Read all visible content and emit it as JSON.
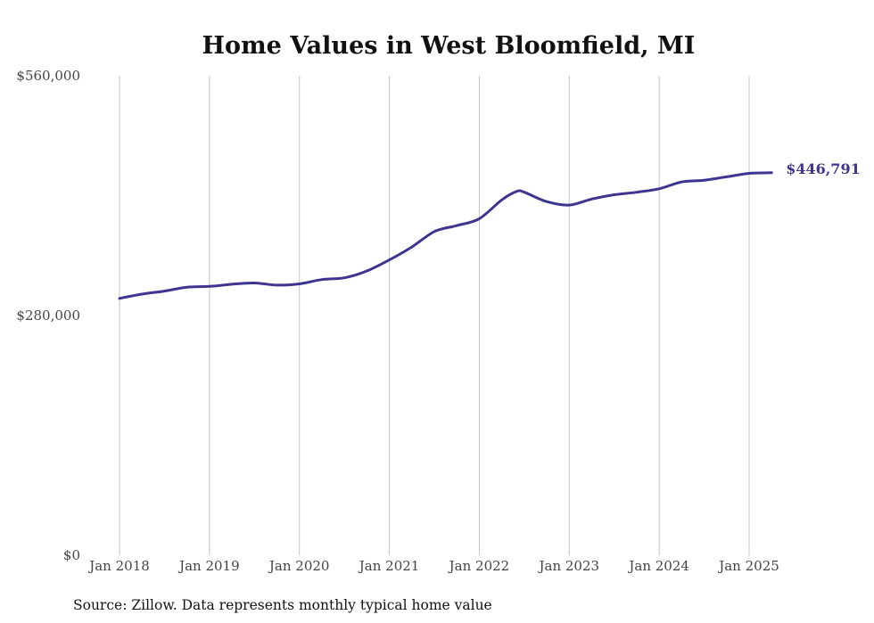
{
  "chart_data": {
    "type": "line",
    "title": "Home Values in West Bloomfield, MI",
    "xlabel": "",
    "ylabel": "",
    "x_tick_labels": [
      "Jan 2018",
      "Jan 2019",
      "Jan 2020",
      "Jan 2021",
      "Jan 2022",
      "Jan 2023",
      "Jan 2024",
      "Jan 2025"
    ],
    "y_tick_labels": [
      "$0",
      "$280,000",
      "$560,000"
    ],
    "y_ticks": [
      0,
      280000,
      560000
    ],
    "ylim": [
      0,
      560000
    ],
    "xlim": [
      "2018-01",
      "2025-04"
    ],
    "grid": "vertical",
    "line_color": "#3d3590",
    "end_label": "$446,791",
    "series": [
      {
        "values": [
          {
            "x": "2018-01",
            "y": 300000
          },
          {
            "x": "2018-04",
            "y": 305000
          },
          {
            "x": "2018-07",
            "y": 308500
          },
          {
            "x": "2018-10",
            "y": 313000
          },
          {
            "x": "2019-01",
            "y": 314000
          },
          {
            "x": "2019-04",
            "y": 316500
          },
          {
            "x": "2019-07",
            "y": 318000
          },
          {
            "x": "2019-10",
            "y": 315500
          },
          {
            "x": "2020-01",
            "y": 317000
          },
          {
            "x": "2020-04",
            "y": 322000
          },
          {
            "x": "2020-07",
            "y": 324000
          },
          {
            "x": "2020-10",
            "y": 332000
          },
          {
            "x": "2021-01",
            "y": 345000
          },
          {
            "x": "2021-04",
            "y": 360000
          },
          {
            "x": "2021-07",
            "y": 378000
          },
          {
            "x": "2021-10",
            "y": 385000
          },
          {
            "x": "2022-01",
            "y": 393000
          },
          {
            "x": "2022-04",
            "y": 415000
          },
          {
            "x": "2022-06",
            "y": 425000
          },
          {
            "x": "2022-07",
            "y": 424000
          },
          {
            "x": "2022-10",
            "y": 413000
          },
          {
            "x": "2023-01",
            "y": 409000
          },
          {
            "x": "2023-04",
            "y": 416000
          },
          {
            "x": "2023-07",
            "y": 421000
          },
          {
            "x": "2023-10",
            "y": 424000
          },
          {
            "x": "2024-01",
            "y": 428000
          },
          {
            "x": "2024-04",
            "y": 436000
          },
          {
            "x": "2024-07",
            "y": 438000
          },
          {
            "x": "2024-10",
            "y": 442000
          },
          {
            "x": "2025-01",
            "y": 446000
          },
          {
            "x": "2025-04",
            "y": 446791
          }
        ]
      }
    ],
    "source": "Source: Zillow. Data represents monthly typical home value"
  }
}
